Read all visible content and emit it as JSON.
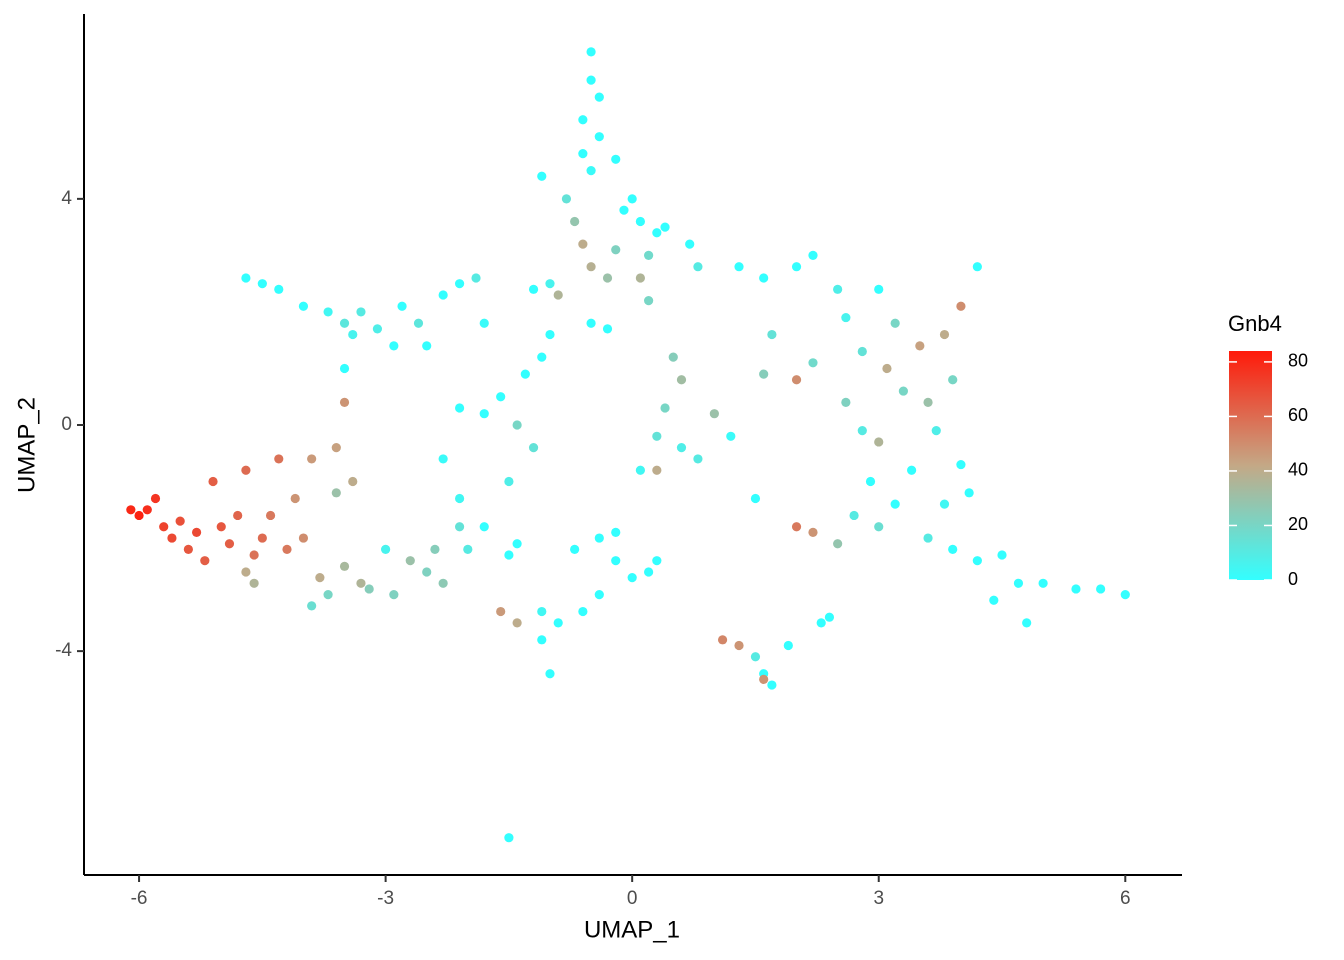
{
  "chart_data": {
    "type": "scatter",
    "x_label": "UMAP_1",
    "y_label": "UMAP_2",
    "xlim": [
      -6.67,
      6.69
    ],
    "ylim": [
      -7.96,
      7.27
    ],
    "xticks": [
      -6,
      -3,
      0,
      3,
      6
    ],
    "yticks": [
      4,
      0,
      -4
    ],
    "colorbar": {
      "title": "Gnb4",
      "lim": [
        0,
        84
      ],
      "ticks": [
        0,
        20,
        40,
        60,
        80
      ],
      "colors": [
        "#33FFFF",
        "#C4A886",
        "#FF1A0A"
      ]
    },
    "x": [
      -6.1,
      -6.0,
      -5.9,
      -5.8,
      -5.7,
      -5.6,
      -5.5,
      -5.4,
      -5.3,
      -5.2,
      -5.0,
      -4.9,
      -4.8,
      -5.1,
      -4.7,
      -4.6,
      -4.5,
      -4.4,
      -4.3,
      -4.2,
      -4.7,
      -4.6,
      -4.1,
      -4.0,
      -3.9,
      -3.8,
      -3.6,
      -3.5,
      -3.4,
      -3.3,
      -3.5,
      -3.6,
      -3.9,
      -3.7,
      -3.2,
      -3.0,
      -2.9,
      -2.7,
      -2.5,
      -2.4,
      -2.3,
      -2.1,
      -2.0,
      -2.1,
      -2.3,
      -4.7,
      -4.5,
      -4.3,
      -4.0,
      -3.7,
      -3.5,
      -3.4,
      -3.3,
      -3.1,
      -2.9,
      -2.8,
      -2.6,
      -2.5,
      -2.3,
      -2.1,
      -1.9,
      -1.8,
      -3.5,
      -2.1,
      -1.8,
      -1.6,
      -1.5,
      -1.4,
      -1.3,
      -1.2,
      -1.1,
      -1.2,
      -1.0,
      -0.9,
      -1.0,
      -1.8,
      -1.5,
      -1.4,
      -0.5,
      -0.5,
      -0.4,
      -0.6,
      -0.4,
      -0.6,
      -0.5,
      -0.2,
      -1.1,
      -0.8,
      -0.7,
      -0.6,
      -0.5,
      -0.3,
      -0.1,
      0.0,
      0.1,
      0.2,
      0.3,
      -0.2,
      0.1,
      0.4,
      0.7,
      0.8,
      -0.5,
      -0.3,
      0.2,
      0.5,
      0.6,
      0.4,
      0.3,
      0.6,
      1.0,
      1.2,
      0.8,
      0.3,
      0.1,
      1.3,
      1.6,
      1.7,
      2.0,
      2.2,
      2.5,
      1.6,
      2.0,
      2.2,
      2.6,
      2.8,
      3.0,
      3.2,
      3.1,
      3.3,
      3.5,
      3.6,
      3.8,
      4.0,
      4.2,
      3.9,
      3.7,
      2.8,
      2.6,
      3.0,
      3.4,
      4.0,
      4.1,
      3.8,
      3.2,
      2.9,
      2.7,
      2.5,
      2.2,
      2.0,
      3.0,
      3.6,
      3.9,
      4.2,
      4.5,
      4.7,
      4.4,
      4.8,
      5.0,
      5.4,
      5.7,
      6.0,
      1.5,
      -0.7,
      -0.4,
      -0.2,
      0.0,
      0.2,
      0.3,
      -0.2,
      -0.4,
      -0.6,
      -0.9,
      -1.1,
      -1.0,
      -1.1,
      -1.6,
      -1.4,
      1.1,
      1.3,
      1.5,
      1.6,
      1.7,
      1.6,
      1.9,
      2.3,
      2.4,
      -1.5
    ],
    "y": [
      -1.5,
      -1.6,
      -1.5,
      -1.3,
      -1.8,
      -2.0,
      -1.7,
      -2.2,
      -1.9,
      -2.4,
      -1.8,
      -2.1,
      -1.6,
      -1.0,
      -0.8,
      -2.3,
      -2.0,
      -1.6,
      -0.6,
      -2.2,
      -2.6,
      -2.8,
      -1.3,
      -2.0,
      -0.6,
      -2.7,
      -0.4,
      -2.5,
      -1.0,
      -2.8,
      0.4,
      -1.2,
      -3.2,
      -3.0,
      -2.9,
      -2.2,
      -3.0,
      -2.4,
      -2.6,
      -2.2,
      -2.8,
      -1.8,
      -2.2,
      -1.3,
      -0.6,
      2.6,
      2.5,
      2.4,
      2.1,
      2.0,
      1.8,
      1.6,
      2.0,
      1.7,
      1.4,
      2.1,
      1.8,
      1.4,
      2.3,
      2.5,
      2.6,
      1.8,
      1.0,
      0.3,
      0.2,
      0.5,
      -1.0,
      0.0,
      0.9,
      -0.4,
      1.2,
      2.4,
      2.5,
      2.3,
      1.6,
      -1.8,
      -2.3,
      -2.1,
      6.6,
      6.1,
      5.8,
      5.4,
      5.1,
      4.8,
      4.5,
      4.7,
      4.4,
      4.0,
      3.6,
      3.2,
      2.8,
      2.6,
      3.8,
      4.0,
      3.6,
      3.0,
      3.4,
      3.1,
      2.6,
      3.5,
      3.2,
      2.8,
      1.8,
      1.7,
      2.2,
      1.2,
      0.8,
      0.3,
      -0.2,
      -0.4,
      0.2,
      -0.2,
      -0.6,
      -0.8,
      -0.8,
      2.8,
      2.6,
      1.6,
      2.8,
      3.0,
      2.4,
      0.9,
      0.8,
      1.1,
      1.9,
      1.3,
      2.4,
      1.8,
      1.0,
      0.6,
      1.4,
      0.4,
      1.6,
      2.1,
      2.8,
      0.8,
      -0.1,
      -0.1,
      0.4,
      -0.3,
      -0.8,
      -0.7,
      -1.2,
      -1.4,
      -1.4,
      -1.0,
      -1.6,
      -2.1,
      -1.9,
      -1.8,
      -1.8,
      -2.0,
      -2.2,
      -2.4,
      -2.3,
      -2.8,
      -3.1,
      -3.5,
      -2.8,
      -2.9,
      -2.9,
      -3.0,
      -1.3,
      -2.2,
      -2.0,
      -2.4,
      -2.7,
      -2.6,
      -2.4,
      -1.9,
      -3.0,
      -3.3,
      -3.5,
      -3.8,
      -4.4,
      -3.3,
      -3.3,
      -3.5,
      -3.8,
      -3.9,
      -4.1,
      -4.4,
      -4.6,
      -4.5,
      -3.9,
      -3.5,
      -3.4,
      -7.3
    ],
    "color_values": [
      80,
      82,
      78,
      76,
      72,
      70,
      68,
      66,
      70,
      64,
      66,
      64,
      62,
      64,
      60,
      58,
      60,
      56,
      58,
      56,
      40,
      36,
      48,
      50,
      46,
      40,
      44,
      34,
      40,
      36,
      48,
      30,
      16,
      20,
      24,
      6,
      22,
      30,
      22,
      24,
      26,
      14,
      10,
      4,
      2,
      0,
      0,
      0,
      0,
      4,
      12,
      6,
      10,
      8,
      0,
      0,
      12,
      0,
      0,
      0,
      10,
      2,
      0,
      0,
      0,
      0,
      8,
      20,
      0,
      14,
      0,
      0,
      6,
      36,
      0,
      0,
      0,
      0,
      0,
      0,
      0,
      0,
      0,
      0,
      2,
      0,
      0,
      14,
      28,
      40,
      38,
      30,
      0,
      0,
      0,
      18,
      0,
      22,
      36,
      0,
      0,
      10,
      0,
      0,
      20,
      24,
      32,
      20,
      14,
      8,
      30,
      2,
      10,
      40,
      4,
      0,
      0,
      14,
      0,
      0,
      8,
      24,
      50,
      18,
      6,
      14,
      0,
      20,
      40,
      20,
      44,
      30,
      40,
      50,
      0,
      20,
      8,
      10,
      22,
      36,
      0,
      0,
      0,
      4,
      0,
      0,
      10,
      28,
      48,
      56,
      16,
      10,
      0,
      0,
      0,
      0,
      0,
      0,
      0,
      0,
      0,
      0,
      0,
      0,
      0,
      0,
      0,
      0,
      0,
      0,
      0,
      0,
      0,
      0,
      0,
      4,
      46,
      40,
      52,
      48,
      10,
      0,
      0,
      48,
      0,
      0,
      0,
      0
    ]
  }
}
